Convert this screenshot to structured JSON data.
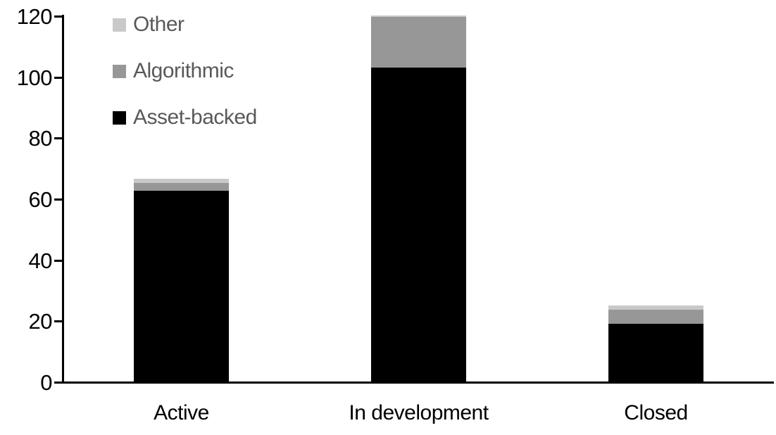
{
  "chart_data": {
    "type": "bar",
    "stacked": true,
    "title": "",
    "xlabel": "",
    "ylabel": "",
    "categories": [
      "Active",
      "In development",
      "Closed"
    ],
    "series": [
      {
        "name": "Asset-backed",
        "color": "#000000",
        "values": [
          62.5,
          103,
          19
        ]
      },
      {
        "name": "Algorithmic",
        "color": "#979797",
        "values": [
          2.5,
          16.5,
          4.5
        ]
      },
      {
        "name": "Other",
        "color": "#c9c9c9",
        "values": [
          1.5,
          0.5,
          1.5
        ]
      }
    ],
    "totals": [
      66.5,
      120,
      25
    ],
    "y_axis": {
      "min": 0,
      "max": 120,
      "tick_step": 20,
      "ticks": [
        0,
        20,
        40,
        60,
        80,
        100,
        120
      ]
    },
    "grid": false,
    "legend": {
      "position": "top-left",
      "order": [
        "Other",
        "Algorithmic",
        "Asset-backed"
      ],
      "text_color": "#595959"
    },
    "colors": {
      "axis": "#000000",
      "background": "#ffffff"
    }
  }
}
